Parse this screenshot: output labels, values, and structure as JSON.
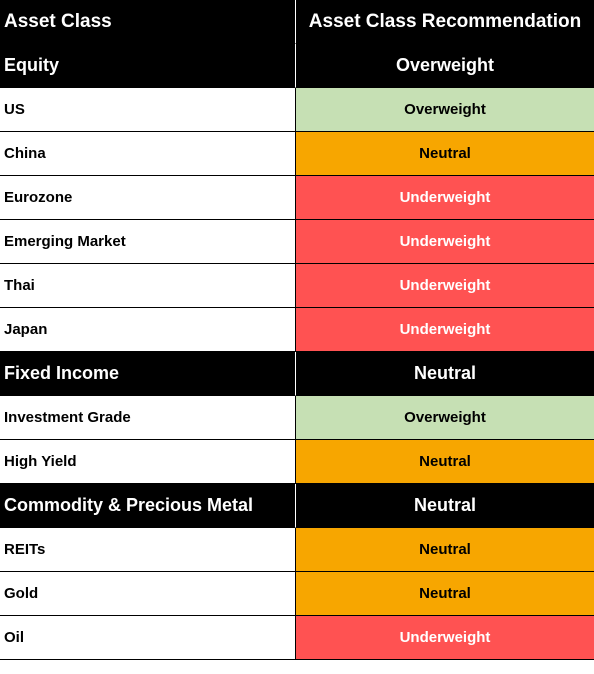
{
  "header": {
    "col1": "Asset Class",
    "col2": "Asset Class Recommendation"
  },
  "rows": [
    {
      "kind": "group",
      "label": "Equity",
      "rec": "Overweight"
    },
    {
      "kind": "item",
      "label": "US",
      "rec": "Overweight",
      "status": "overweight"
    },
    {
      "kind": "item",
      "label": "China",
      "rec": "Neutral",
      "status": "neutral"
    },
    {
      "kind": "item",
      "label": "Eurozone",
      "rec": "Underweight",
      "status": "underweight"
    },
    {
      "kind": "item",
      "label": "Emerging Market",
      "rec": "Underweight",
      "status": "underweight"
    },
    {
      "kind": "item",
      "label": "Thai",
      "rec": "Underweight",
      "status": "underweight"
    },
    {
      "kind": "item",
      "label": "Japan",
      "rec": "Underweight",
      "status": "underweight"
    },
    {
      "kind": "group",
      "label": "Fixed Income",
      "rec": "Neutral"
    },
    {
      "kind": "item",
      "label": "Investment Grade",
      "rec": "Overweight",
      "status": "overweight"
    },
    {
      "kind": "item",
      "label": "High Yield",
      "rec": "Neutral",
      "status": "neutral"
    },
    {
      "kind": "group",
      "label": "Commodity & Precious Metal",
      "rec": "Neutral"
    },
    {
      "kind": "item",
      "label": "REITs",
      "rec": "Neutral",
      "status": "neutral"
    },
    {
      "kind": "item",
      "label": "Gold",
      "rec": "Neutral",
      "status": "neutral"
    },
    {
      "kind": "item",
      "label": "Oil",
      "rec": "Underweight",
      "status": "underweight"
    }
  ],
  "colors": {
    "overweight": "#c6e0b4",
    "neutral": "#f7a600",
    "underweight": "#ff5252",
    "header": "#000000"
  }
}
